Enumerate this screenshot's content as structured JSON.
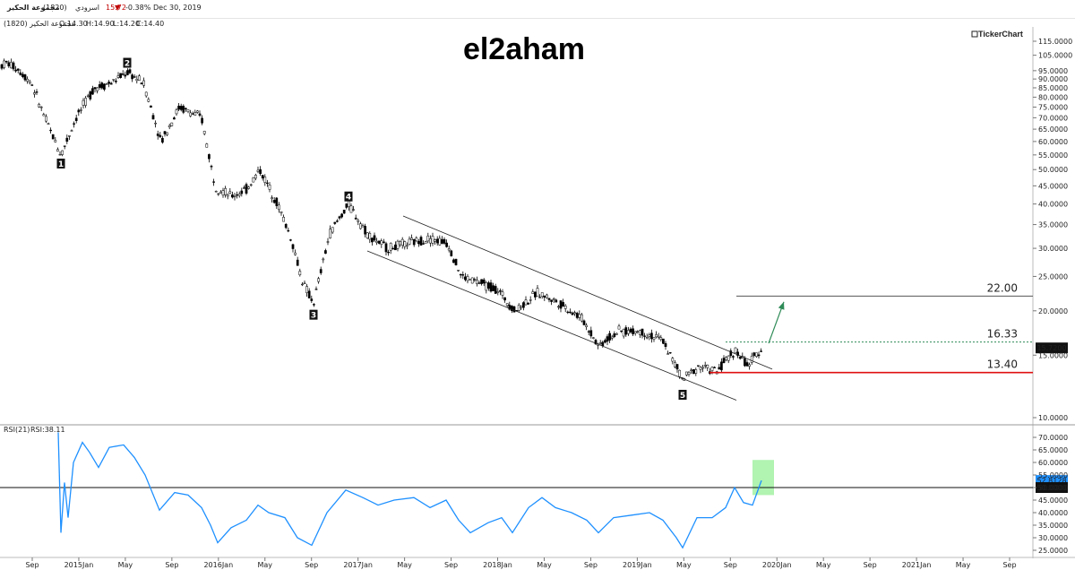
{
  "header": {
    "name": "مجموعة الحكير",
    "code": "(1820)",
    "market": "اسرودي",
    "price": "15.72",
    "change": "-0.38%",
    "date": "Dec 30, 2019",
    "ohlc_label": "مجموعة الحكير (1820)",
    "open": "O:14.30",
    "high": "H:14.90",
    "low": "L:14.20",
    "close": "C:14.40"
  },
  "brand": "TickerChart",
  "watermark": "el2aham",
  "colors": {
    "up": "#ffffff",
    "down": "#000000",
    "rsi": "#1e90ff",
    "support": "#e01010",
    "target": "#2e8b57"
  },
  "chart_data": [
    {
      "type": "candlestick",
      "title": "",
      "y_scale": "log",
      "ylim": [
        9.5,
        120
      ],
      "y_ticks": [
        "115.0000",
        "105.0000",
        "95.0000",
        "90.0000",
        "85.0000",
        "80.0000",
        "75.0000",
        "70.0000",
        "65.0000",
        "60.0000",
        "55.0000",
        "50.0000",
        "45.0000",
        "40.0000",
        "35.0000",
        "30.0000",
        "25.0000",
        "20.0000",
        "15.0000",
        "10.0000"
      ],
      "x_ticks": [
        "Sep",
        "2015Jan",
        "May",
        "Sep",
        "2016Jan",
        "May",
        "Sep",
        "2017Jan",
        "May",
        "Sep",
        "2018Jan",
        "May",
        "Sep",
        "2019Jan",
        "May",
        "Sep",
        "2020Jan",
        "May",
        "Sep",
        "2021Jan",
        "May",
        "Sep"
      ],
      "price_path": [
        {
          "x": 0,
          "y": 98
        },
        {
          "x": 8,
          "y": 100
        },
        {
          "x": 20,
          "y": 96
        },
        {
          "x": 35,
          "y": 88
        },
        {
          "x": 50,
          "y": 70
        },
        {
          "x": 68,
          "y": 55
        },
        {
          "x": 85,
          "y": 70
        },
        {
          "x": 105,
          "y": 85
        },
        {
          "x": 125,
          "y": 88
        },
        {
          "x": 142,
          "y": 94
        },
        {
          "x": 160,
          "y": 88
        },
        {
          "x": 180,
          "y": 60
        },
        {
          "x": 200,
          "y": 75
        },
        {
          "x": 225,
          "y": 70
        },
        {
          "x": 240,
          "y": 45
        },
        {
          "x": 258,
          "y": 42
        },
        {
          "x": 275,
          "y": 44
        },
        {
          "x": 290,
          "y": 50
        },
        {
          "x": 310,
          "y": 40
        },
        {
          "x": 325,
          "y": 32
        },
        {
          "x": 338,
          "y": 24
        },
        {
          "x": 350,
          "y": 21
        },
        {
          "x": 368,
          "y": 33
        },
        {
          "x": 389,
          "y": 40
        },
        {
          "x": 410,
          "y": 33
        },
        {
          "x": 432,
          "y": 30
        },
        {
          "x": 455,
          "y": 31
        },
        {
          "x": 480,
          "y": 32
        },
        {
          "x": 500,
          "y": 31
        },
        {
          "x": 515,
          "y": 25
        },
        {
          "x": 535,
          "y": 24
        },
        {
          "x": 555,
          "y": 23
        },
        {
          "x": 575,
          "y": 20
        },
        {
          "x": 600,
          "y": 22.5
        },
        {
          "x": 625,
          "y": 21
        },
        {
          "x": 650,
          "y": 19
        },
        {
          "x": 668,
          "y": 16
        },
        {
          "x": 690,
          "y": 17.5
        },
        {
          "x": 715,
          "y": 17.5
        },
        {
          "x": 740,
          "y": 16.5
        },
        {
          "x": 762,
          "y": 12.8
        },
        {
          "x": 780,
          "y": 14
        },
        {
          "x": 800,
          "y": 13.5
        },
        {
          "x": 820,
          "y": 15.5
        },
        {
          "x": 835,
          "y": 14
        },
        {
          "x": 850,
          "y": 15.7
        }
      ],
      "wave_labels": [
        {
          "label": "1",
          "x": 68,
          "y": 52
        },
        {
          "label": "2",
          "x": 142,
          "y": 100
        },
        {
          "label": "3",
          "x": 350,
          "y": 19.5
        },
        {
          "label": "4",
          "x": 389,
          "y": 42
        },
        {
          "label": "5",
          "x": 762,
          "y": 11.6
        }
      ],
      "channel": {
        "upper": [
          {
            "x": 450,
            "y": 37
          },
          {
            "x": 862,
            "y": 13.7
          }
        ],
        "lower": [
          {
            "x": 410,
            "y": 29.5
          },
          {
            "x": 822,
            "y": 11.2
          }
        ]
      },
      "levels": [
        {
          "value": 22.0,
          "label": "22.00",
          "style": "solid",
          "color": "#555555"
        },
        {
          "value": 16.33,
          "label": "16.33",
          "style": "dotted",
          "color": "#2e8b57"
        },
        {
          "value": 13.4,
          "label": "13.40",
          "style": "solid",
          "color": "#e01010"
        }
      ],
      "last_price_label": "15.7200",
      "arrow": {
        "from": {
          "x": 858,
          "y": 16.2
        },
        "to": {
          "x": 875,
          "y": 21.2
        }
      }
    },
    {
      "type": "line",
      "title": "RSI(21)",
      "series": [
        {
          "name": "RSI:38.11",
          "values": []
        }
      ],
      "ylim": [
        23,
        73
      ],
      "y_ticks": [
        "70.0000",
        "65.0000",
        "60.0000",
        "55.0000",
        "50.0000",
        "45.0000",
        "40.0000",
        "35.0000",
        "30.0000",
        "25.0000"
      ],
      "reference_line": 50,
      "reference_label": "50.0000",
      "last_value_label": "52.8128",
      "rsi_path": [
        {
          "x": 65,
          "y": 72
        },
        {
          "x": 68,
          "y": 32
        },
        {
          "x": 72,
          "y": 52
        },
        {
          "x": 76,
          "y": 38
        },
        {
          "x": 82,
          "y": 60
        },
        {
          "x": 92,
          "y": 68
        },
        {
          "x": 100,
          "y": 64
        },
        {
          "x": 110,
          "y": 58
        },
        {
          "x": 122,
          "y": 66
        },
        {
          "x": 138,
          "y": 67
        },
        {
          "x": 150,
          "y": 62
        },
        {
          "x": 162,
          "y": 55
        },
        {
          "x": 178,
          "y": 41
        },
        {
          "x": 195,
          "y": 48
        },
        {
          "x": 210,
          "y": 47
        },
        {
          "x": 225,
          "y": 42
        },
        {
          "x": 235,
          "y": 35
        },
        {
          "x": 243,
          "y": 28
        },
        {
          "x": 258,
          "y": 34
        },
        {
          "x": 275,
          "y": 37
        },
        {
          "x": 288,
          "y": 43
        },
        {
          "x": 300,
          "y": 40
        },
        {
          "x": 318,
          "y": 38
        },
        {
          "x": 332,
          "y": 30
        },
        {
          "x": 348,
          "y": 27
        },
        {
          "x": 365,
          "y": 40
        },
        {
          "x": 386,
          "y": 49
        },
        {
          "x": 405,
          "y": 46
        },
        {
          "x": 422,
          "y": 43
        },
        {
          "x": 440,
          "y": 45
        },
        {
          "x": 462,
          "y": 46
        },
        {
          "x": 480,
          "y": 42
        },
        {
          "x": 498,
          "y": 45
        },
        {
          "x": 512,
          "y": 37
        },
        {
          "x": 525,
          "y": 32
        },
        {
          "x": 545,
          "y": 36
        },
        {
          "x": 560,
          "y": 38
        },
        {
          "x": 572,
          "y": 32
        },
        {
          "x": 590,
          "y": 42
        },
        {
          "x": 605,
          "y": 46
        },
        {
          "x": 620,
          "y": 42
        },
        {
          "x": 638,
          "y": 40
        },
        {
          "x": 655,
          "y": 37
        },
        {
          "x": 668,
          "y": 32
        },
        {
          "x": 685,
          "y": 38
        },
        {
          "x": 705,
          "y": 39
        },
        {
          "x": 725,
          "y": 40
        },
        {
          "x": 740,
          "y": 37
        },
        {
          "x": 755,
          "y": 30
        },
        {
          "x": 762,
          "y": 26
        },
        {
          "x": 778,
          "y": 38
        },
        {
          "x": 795,
          "y": 38
        },
        {
          "x": 810,
          "y": 42
        },
        {
          "x": 820,
          "y": 50
        },
        {
          "x": 830,
          "y": 44
        },
        {
          "x": 840,
          "y": 43
        },
        {
          "x": 850,
          "y": 52.8
        }
      ],
      "highlight_box": {
        "x0": 840,
        "x1": 864,
        "y0": 47,
        "y1": 61
      }
    }
  ]
}
